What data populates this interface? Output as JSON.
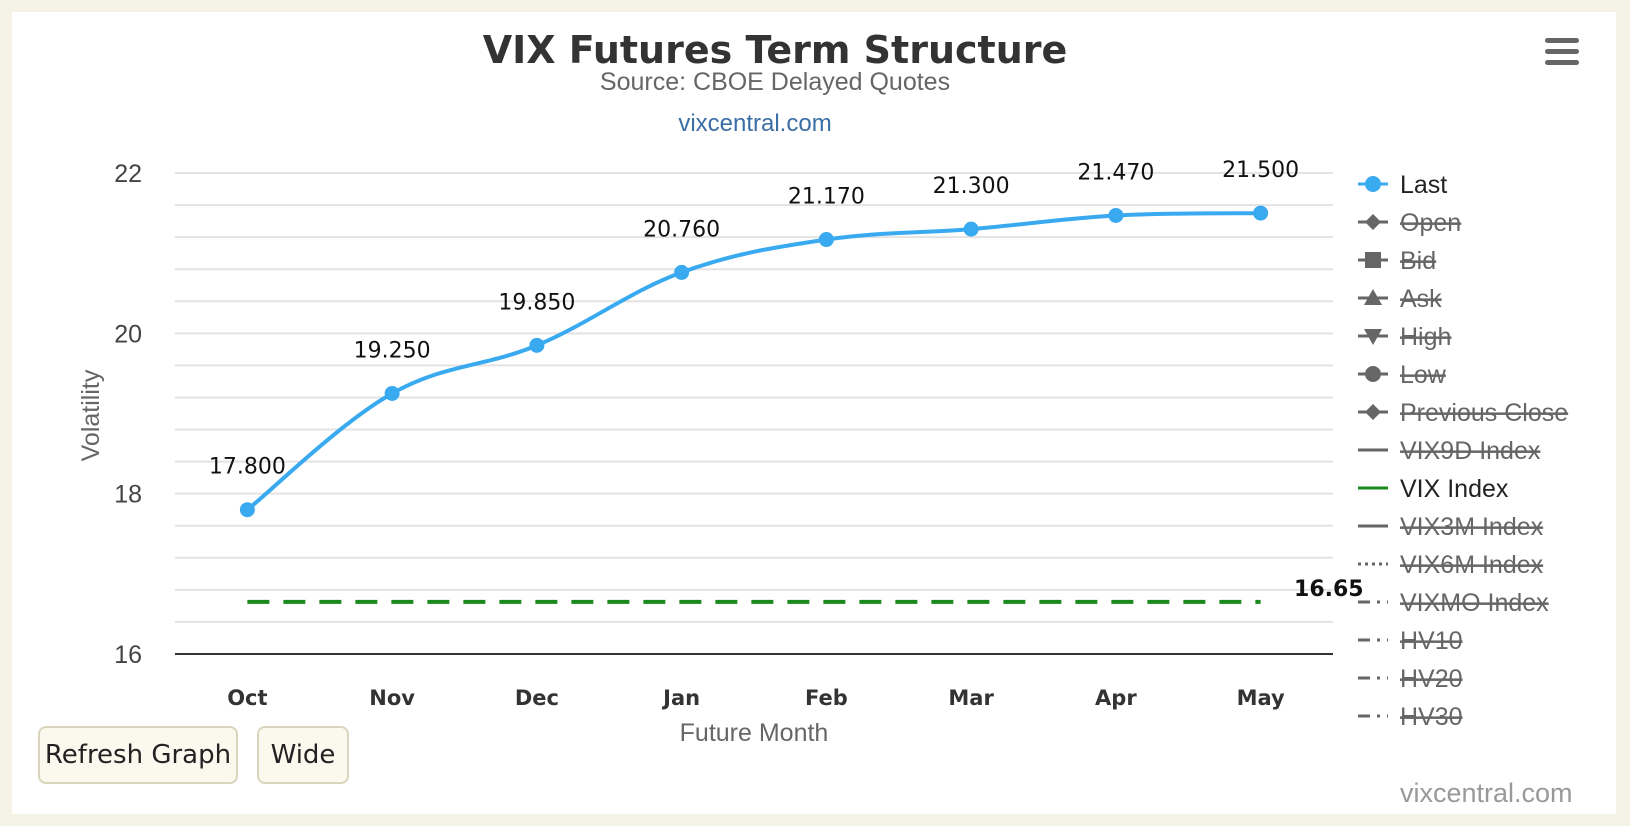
{
  "chart_data": {
    "type": "line",
    "title": "VIX Futures Term Structure",
    "subtitle": "Source: CBOE Delayed Quotes",
    "credit_top": "vixcentral.com",
    "credit_bottom": "vixcentral.com",
    "xlabel": "Future Month",
    "ylabel": "Volatility",
    "categories": [
      "Oct",
      "Nov",
      "Dec",
      "Jan",
      "Feb",
      "Mar",
      "Apr",
      "May"
    ],
    "yticks": [
      "16",
      "18",
      "20",
      "22"
    ],
    "ylim": [
      16,
      22
    ],
    "grid": true,
    "series": [
      {
        "name": "Last",
        "color": "#3aaaf0",
        "style": "spline-with-markers",
        "values": [
          17.8,
          19.25,
          19.85,
          20.76,
          21.17,
          21.3,
          21.47,
          21.5
        ],
        "labels": [
          "17.800",
          "19.250",
          "19.850",
          "20.760",
          "21.170",
          "21.300",
          "21.470",
          "21.500"
        ]
      },
      {
        "name": "VIX Index",
        "color": "#1a8a1a",
        "style": "dashed",
        "value": 16.65,
        "label": "16.65"
      }
    ],
    "legend": {
      "position": "right",
      "items": [
        {
          "name": "Last",
          "symbol": "circle-line",
          "active": true,
          "color": "#3aaaf0"
        },
        {
          "name": "Open",
          "symbol": "diamond-line",
          "active": false
        },
        {
          "name": "Bid",
          "symbol": "square-line",
          "active": false
        },
        {
          "name": "Ask",
          "symbol": "triangle-line",
          "active": false
        },
        {
          "name": "High",
          "symbol": "triangle-down-line",
          "active": false
        },
        {
          "name": "Low",
          "symbol": "circle-line",
          "active": false
        },
        {
          "name": "Previous Close",
          "symbol": "diamond-line",
          "active": false
        },
        {
          "name": "VIX9D Index",
          "symbol": "solid-line",
          "active": false
        },
        {
          "name": "VIX Index",
          "symbol": "solid-line",
          "active": true,
          "color": "#1a8a1a"
        },
        {
          "name": "VIX3M Index",
          "symbol": "solid-line",
          "active": false
        },
        {
          "name": "VIX6M Index",
          "symbol": "dotted-line",
          "active": false
        },
        {
          "name": "VIXMO Index",
          "symbol": "dash-dot-line",
          "active": false
        },
        {
          "name": "HV10",
          "symbol": "dash-dot-line",
          "active": false
        },
        {
          "name": "HV20",
          "symbol": "dash-dot-line",
          "active": false
        },
        {
          "name": "HV30",
          "symbol": "dash-dot-line",
          "active": false
        }
      ]
    }
  },
  "controls": {
    "refresh_label": "Refresh Graph",
    "wide_label": "Wide",
    "menu_icon": "hamburger-menu-icon"
  }
}
